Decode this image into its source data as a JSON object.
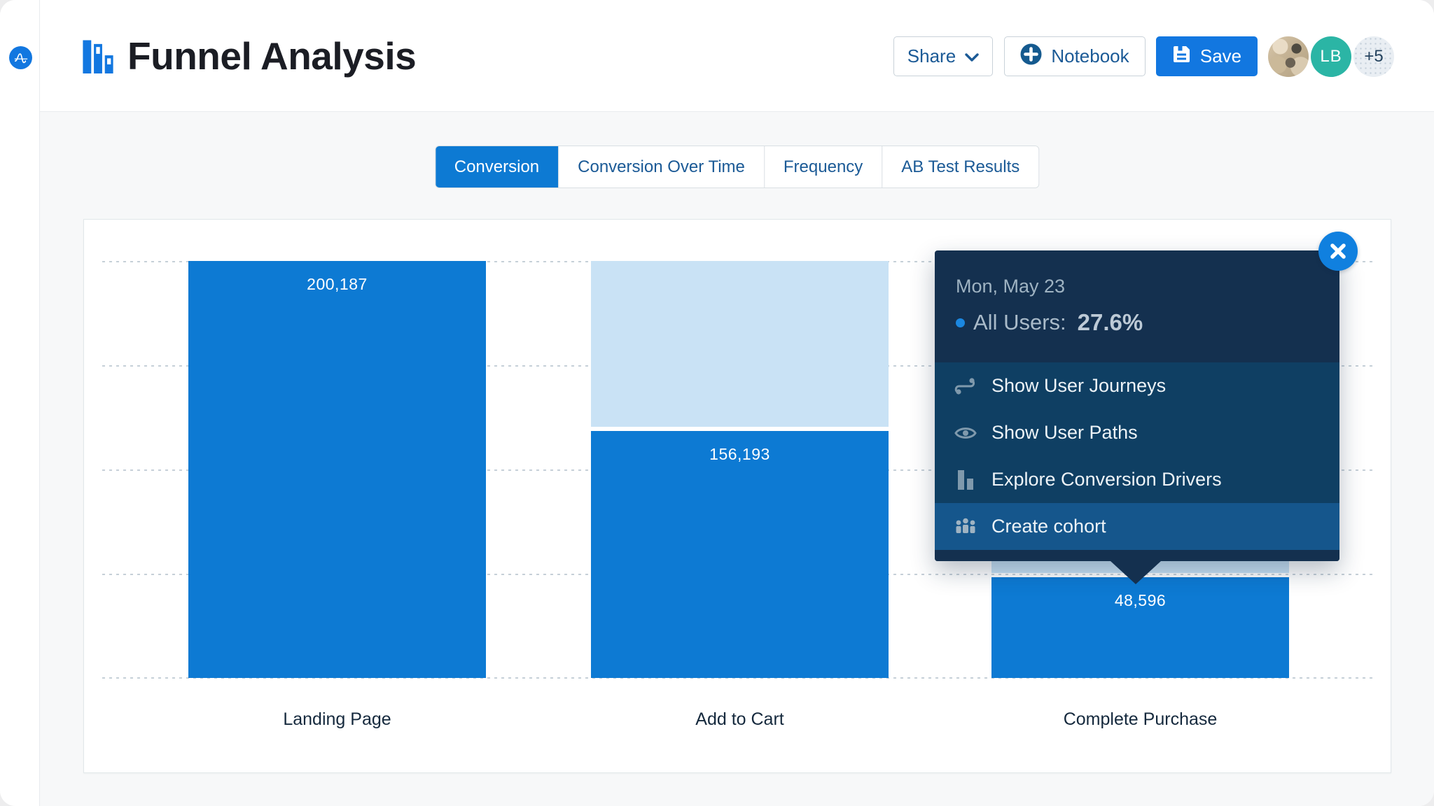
{
  "header": {
    "title": "Funnel Analysis",
    "share_label": "Share",
    "notebook_label": "Notebook",
    "save_label": "Save",
    "avatars": {
      "initials": "LB",
      "overflow": "+5"
    }
  },
  "tabs": [
    {
      "label": "Conversion",
      "active": true
    },
    {
      "label": "Conversion Over Time",
      "active": false
    },
    {
      "label": "Frequency",
      "active": false
    },
    {
      "label": "AB Test Results",
      "active": false
    }
  ],
  "chart_data": {
    "type": "bar",
    "subtype": "funnel-conversion",
    "series_name": "All Users",
    "categories": [
      "Landing Page",
      "Add to Cart",
      "Complete Purchase"
    ],
    "values": [
      200187,
      156193,
      48596
    ],
    "ylim": [
      0,
      200187
    ],
    "grid": "horizontal-dotted",
    "steps": [
      {
        "label": "Landing Page",
        "display": "200,187",
        "blue_top_pct": 0,
        "light_top_pct": null,
        "light_height_pct": 0
      },
      {
        "label": "Add to Cart",
        "display": "156,193",
        "blue_top_pct": 40.7,
        "light_top_pct": 0,
        "light_height_pct": 39.7
      },
      {
        "label": "Complete Purchase",
        "display": "48,596",
        "blue_top_pct": 75.8,
        "light_top_pct": 40.7,
        "light_height_pct": 34.1
      }
    ]
  },
  "tooltip": {
    "date": "Mon, May 23",
    "series_label": "All Users:",
    "value": "27.6%",
    "menu": [
      {
        "icon": "journey-icon",
        "label": "Show User Journeys"
      },
      {
        "icon": "eye-icon",
        "label": "Show User Paths"
      },
      {
        "icon": "bar-chart-icon",
        "label": "Explore Conversion Drivers"
      },
      {
        "icon": "people-icon",
        "label": "Create cohort"
      }
    ]
  },
  "colors": {
    "bar_blue": "#0d7ad3",
    "bar_light_blue": "#c9e2f5",
    "accent_blue": "#1277e0",
    "tooltip_navy": "#14304f",
    "tooltip_menu": "#0f3f63",
    "tooltip_highlight": "#15568c",
    "avatar_teal": "#2bb5a5",
    "text_navy": "#1b5a96"
  }
}
